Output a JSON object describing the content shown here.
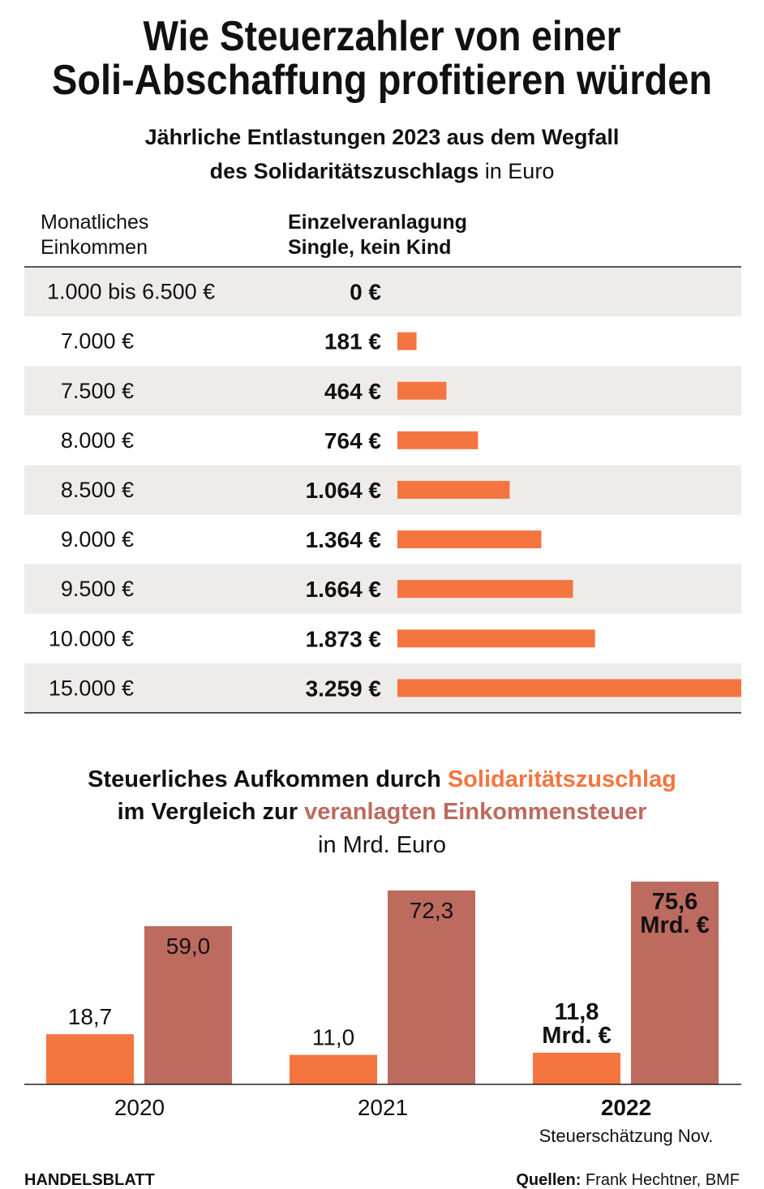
{
  "title_lines": [
    "Wie Steuerzahler von einer",
    "Soli-Abschaffung profitieren würden"
  ],
  "chart_data": [
    {
      "type": "hbar-table",
      "subtitle_lines": [
        "Jährliche Entlastungen 2023 aus dem Wegfall",
        "des Solidaritätszuschlags"
      ],
      "unit": "in Euro",
      "column_headers": [
        [
          "Monatliches",
          "Einkommen"
        ],
        [
          "Einzelveranlagung",
          "Single, kein Kind"
        ]
      ],
      "categories": [
        "1.000 bis 6.500 €",
        "7.000 €",
        "7.500 €",
        "8.000 €",
        "8.500 €",
        "9.000 €",
        "9.500 €",
        "10.000 €",
        "15.000 €"
      ],
      "values": [
        0,
        181,
        464,
        764,
        1064,
        1364,
        1664,
        1873,
        3259
      ],
      "value_labels": [
        "0 €",
        "181 €",
        "464 €",
        "764 €",
        "1.064 €",
        "1.364 €",
        "1.664 €",
        "1.873 €",
        "3.259 €"
      ],
      "color": "#f47540"
    },
    {
      "type": "grouped-bar",
      "title_parts": [
        "Steuerliches Aufkommen durch",
        "im Vergleich zur"
      ],
      "unit": "in Mrd. Euro",
      "categories": [
        "2020",
        "2021",
        "2022"
      ],
      "category_note": "Steuerschätzung Nov.",
      "series": [
        {
          "name": "Solidaritätszuschlag",
          "color": "#f47540",
          "values": [
            18.7,
            11.0,
            11.8
          ],
          "value_labels": [
            "18,7",
            "11,0",
            "11,8\nMrd. €"
          ]
        },
        {
          "name": "veranlagten Einkommensteuer",
          "color": "#bd6a5f",
          "values": [
            59.0,
            72.3,
            75.6
          ],
          "value_labels": [
            "59,0",
            "72,3",
            "75,6\nMrd. €"
          ]
        }
      ]
    }
  ],
  "footer": {
    "brand": "HANDELSBLATT",
    "source_label": "Quellen:",
    "source": "Frank Hechtner, BMF"
  }
}
